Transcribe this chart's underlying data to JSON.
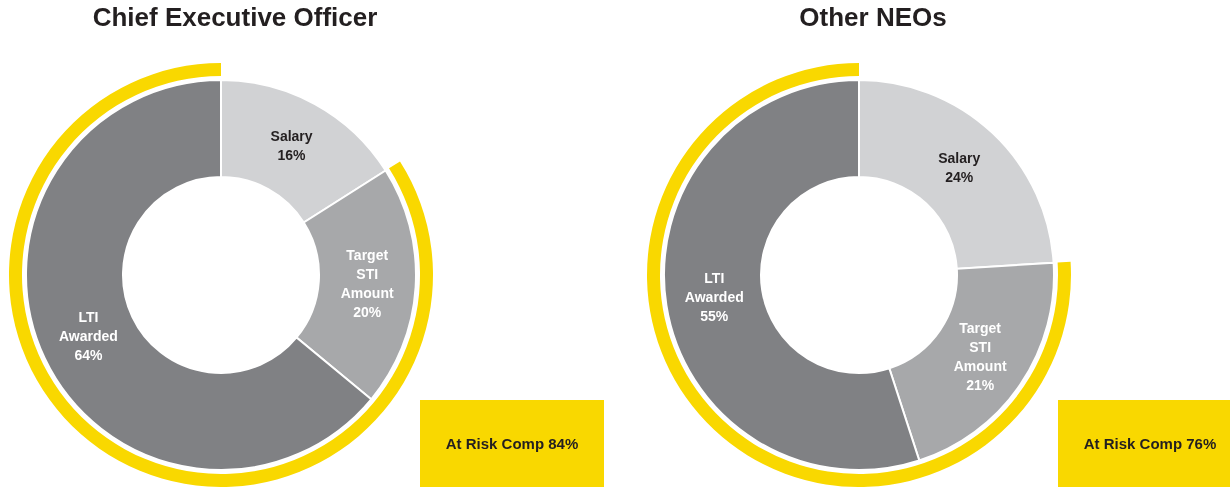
{
  "chart_data": [
    {
      "type": "donut",
      "title": "Chief Executive Officer",
      "categories": [
        "Salary",
        "Target STI Amount",
        "LTI Awarded"
      ],
      "series": [
        {
          "values": [
            16,
            20,
            64
          ],
          "colors": [
            "#d1d2d4",
            "#a7a8aa",
            "#808184"
          ],
          "value_labels": [
            "16%",
            "20%",
            "64%"
          ]
        }
      ],
      "annotations": [
        "At Risk Comp 84%"
      ]
    },
    {
      "type": "donut",
      "title": "Other NEOs",
      "categories": [
        "Salary",
        "Target STI Amount",
        "LTI Awarded"
      ],
      "series": [
        {
          "values": [
            24,
            21,
            55
          ],
          "colors": [
            "#d1d2d4",
            "#a7a8aa",
            "#808184"
          ],
          "value_labels": [
            "24%",
            "21%",
            "55%"
          ]
        }
      ],
      "annotations": [
        "At Risk Comp 76%"
      ]
    }
  ]
}
